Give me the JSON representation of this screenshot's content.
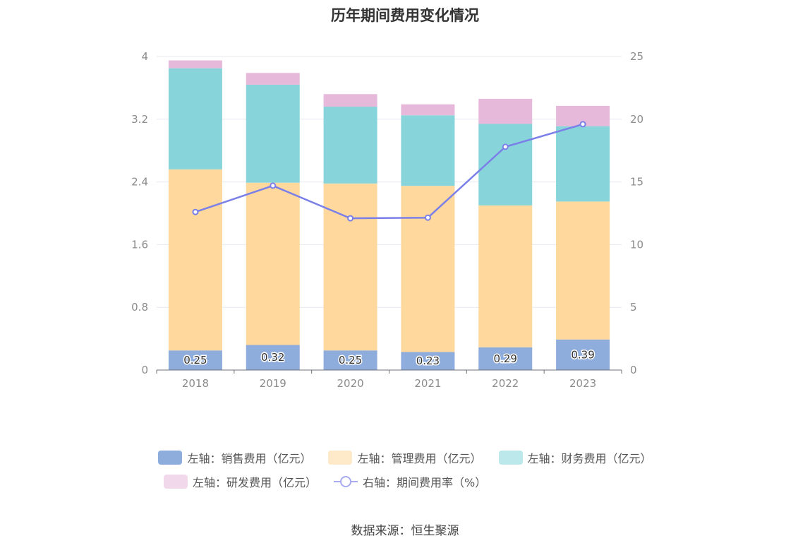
{
  "title": "历年期间费用变化情况",
  "source": "数据来源：恒生聚源",
  "chart_data": {
    "type": "bar",
    "stacked": true,
    "categories": [
      "2018",
      "2019",
      "2020",
      "2021",
      "2022",
      "2023"
    ],
    "left_axis": {
      "ticks": [
        "0",
        "0.8",
        "1.6",
        "2.4",
        "3.2",
        "4"
      ],
      "ylim": [
        0,
        4
      ]
    },
    "right_axis": {
      "ticks": [
        "0",
        "5",
        "10",
        "15",
        "20",
        "25"
      ],
      "ylim": [
        0,
        25
      ]
    },
    "series": [
      {
        "name": "左轴：销售费用（亿元）",
        "axis": "left",
        "kind": "bar",
        "color": "#8eacdc",
        "values": [
          0.25,
          0.32,
          0.25,
          0.23,
          0.29,
          0.39
        ],
        "labels": [
          "0.25",
          "0.32",
          "0.25",
          "0.23",
          "0.29",
          "0.39"
        ]
      },
      {
        "name": "左轴：管理费用（亿元）",
        "axis": "left",
        "kind": "bar",
        "color": "#fed89d",
        "values": [
          2.31,
          2.07,
          2.13,
          2.12,
          1.81,
          1.76
        ]
      },
      {
        "name": "左轴：财务费用（亿元）",
        "axis": "left",
        "kind": "bar",
        "color": "#87d5da",
        "values": [
          1.29,
          1.25,
          0.98,
          0.9,
          1.04,
          0.96
        ]
      },
      {
        "name": "左轴：研发费用（亿元）",
        "axis": "left",
        "kind": "bar",
        "color": "#e6b9da",
        "values": [
          0.1,
          0.15,
          0.16,
          0.14,
          0.32,
          0.26
        ]
      },
      {
        "name": "右轴：期间费用率（%）",
        "axis": "right",
        "kind": "line",
        "color": "#7b7fe8",
        "values": [
          12.6,
          14.7,
          12.1,
          12.15,
          17.8,
          19.6
        ]
      }
    ],
    "legend_position": "bottom",
    "grid": true
  }
}
